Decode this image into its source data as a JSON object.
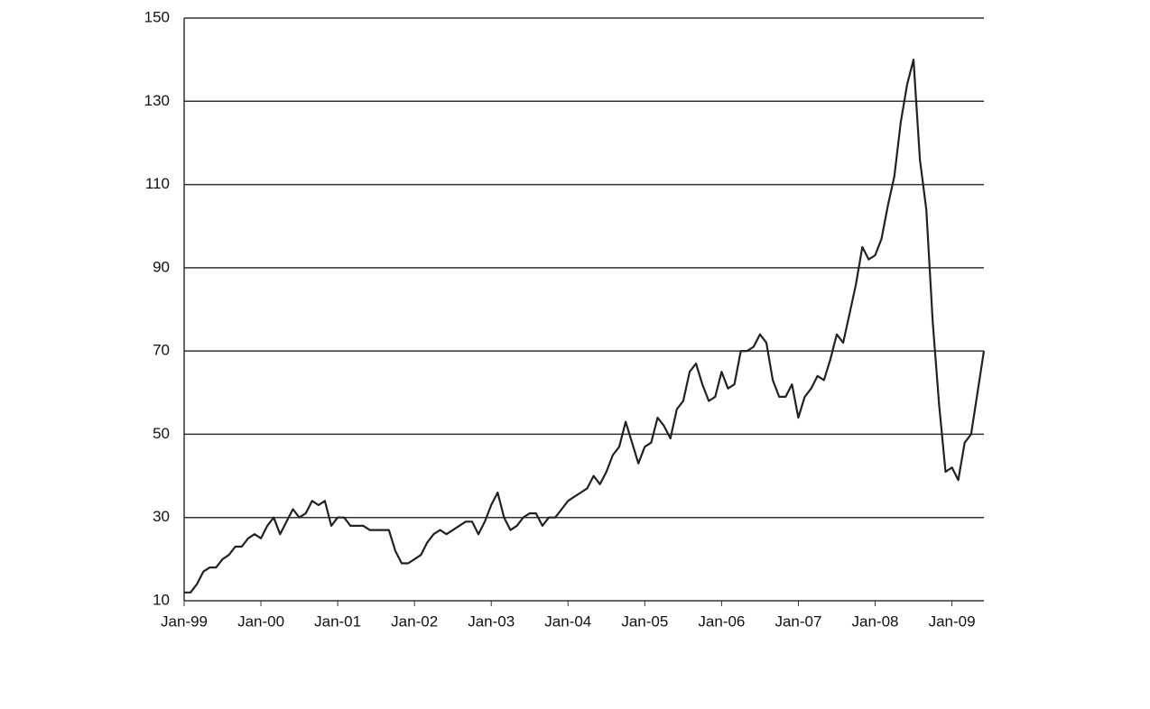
{
  "chart_data": {
    "type": "line",
    "color": "#222222",
    "grid": true,
    "ylim": [
      10,
      150
    ],
    "yticks": [
      10,
      30,
      50,
      70,
      90,
      110,
      130,
      150
    ],
    "xlim": [
      "1999-01",
      "2009-06"
    ],
    "xticks": [
      {
        "value": "1999-01",
        "label": "Jan-99"
      },
      {
        "value": "2000-01",
        "label": "Jan-00"
      },
      {
        "value": "2001-01",
        "label": "Jan-01"
      },
      {
        "value": "2002-01",
        "label": "Jan-02"
      },
      {
        "value": "2003-01",
        "label": "Jan-03"
      },
      {
        "value": "2004-01",
        "label": "Jan-04"
      },
      {
        "value": "2005-01",
        "label": "Jan-05"
      },
      {
        "value": "2006-01",
        "label": "Jan-06"
      },
      {
        "value": "2007-01",
        "label": "Jan-07"
      },
      {
        "value": "2008-01",
        "label": "Jan-08"
      },
      {
        "value": "2009-01",
        "label": "Jan-09"
      }
    ],
    "x": [
      "1999-01",
      "1999-02",
      "1999-03",
      "1999-04",
      "1999-05",
      "1999-06",
      "1999-07",
      "1999-08",
      "1999-09",
      "1999-10",
      "1999-11",
      "1999-12",
      "2000-01",
      "2000-02",
      "2000-03",
      "2000-04",
      "2000-05",
      "2000-06",
      "2000-07",
      "2000-08",
      "2000-09",
      "2000-10",
      "2000-11",
      "2000-12",
      "2001-01",
      "2001-02",
      "2001-03",
      "2001-04",
      "2001-05",
      "2001-06",
      "2001-07",
      "2001-08",
      "2001-09",
      "2001-10",
      "2001-11",
      "2001-12",
      "2002-01",
      "2002-02",
      "2002-03",
      "2002-04",
      "2002-05",
      "2002-06",
      "2002-07",
      "2002-08",
      "2002-09",
      "2002-10",
      "2002-11",
      "2002-12",
      "2003-01",
      "2003-02",
      "2003-03",
      "2003-04",
      "2003-05",
      "2003-06",
      "2003-07",
      "2003-08",
      "2003-09",
      "2003-10",
      "2003-11",
      "2003-12",
      "2004-01",
      "2004-02",
      "2004-03",
      "2004-04",
      "2004-05",
      "2004-06",
      "2004-07",
      "2004-08",
      "2004-09",
      "2004-10",
      "2004-11",
      "2004-12",
      "2005-01",
      "2005-02",
      "2005-03",
      "2005-04",
      "2005-05",
      "2005-06",
      "2005-07",
      "2005-08",
      "2005-09",
      "2005-10",
      "2005-11",
      "2005-12",
      "2006-01",
      "2006-02",
      "2006-03",
      "2006-04",
      "2006-05",
      "2006-06",
      "2006-07",
      "2006-08",
      "2006-09",
      "2006-10",
      "2006-11",
      "2006-12",
      "2007-01",
      "2007-02",
      "2007-03",
      "2007-04",
      "2007-05",
      "2007-06",
      "2007-07",
      "2007-08",
      "2007-09",
      "2007-10",
      "2007-11",
      "2007-12",
      "2008-01",
      "2008-02",
      "2008-03",
      "2008-04",
      "2008-05",
      "2008-06",
      "2008-07",
      "2008-08",
      "2008-09",
      "2008-10",
      "2008-11",
      "2008-12",
      "2009-01",
      "2009-02",
      "2009-03",
      "2009-04",
      "2009-05",
      "2009-06"
    ],
    "values": [
      12,
      12,
      14,
      17,
      18,
      18,
      20,
      21,
      23,
      23,
      25,
      26,
      25,
      28,
      30,
      26,
      29,
      32,
      30,
      31,
      34,
      33,
      34,
      28,
      30,
      30,
      28,
      28,
      28,
      27,
      27,
      27,
      27,
      22,
      19,
      19,
      20,
      21,
      24,
      26,
      27,
      26,
      27,
      28,
      29,
      29,
      26,
      29,
      33,
      36,
      30,
      27,
      28,
      30,
      31,
      31,
      28,
      30,
      30,
      32,
      34,
      35,
      36,
      37,
      40,
      38,
      41,
      45,
      47,
      53,
      48,
      43,
      47,
      48,
      54,
      52,
      49,
      56,
      58,
      65,
      67,
      62,
      58,
      59,
      65,
      61,
      62,
      70,
      70,
      71,
      74,
      72,
      63,
      59,
      59,
      62,
      54,
      59,
      61,
      64,
      63,
      68,
      74,
      72,
      79,
      86,
      95,
      92,
      93,
      97,
      105,
      112,
      125,
      134,
      140,
      116,
      104,
      77,
      57,
      41,
      42,
      39,
      48,
      50,
      60,
      70
    ]
  }
}
